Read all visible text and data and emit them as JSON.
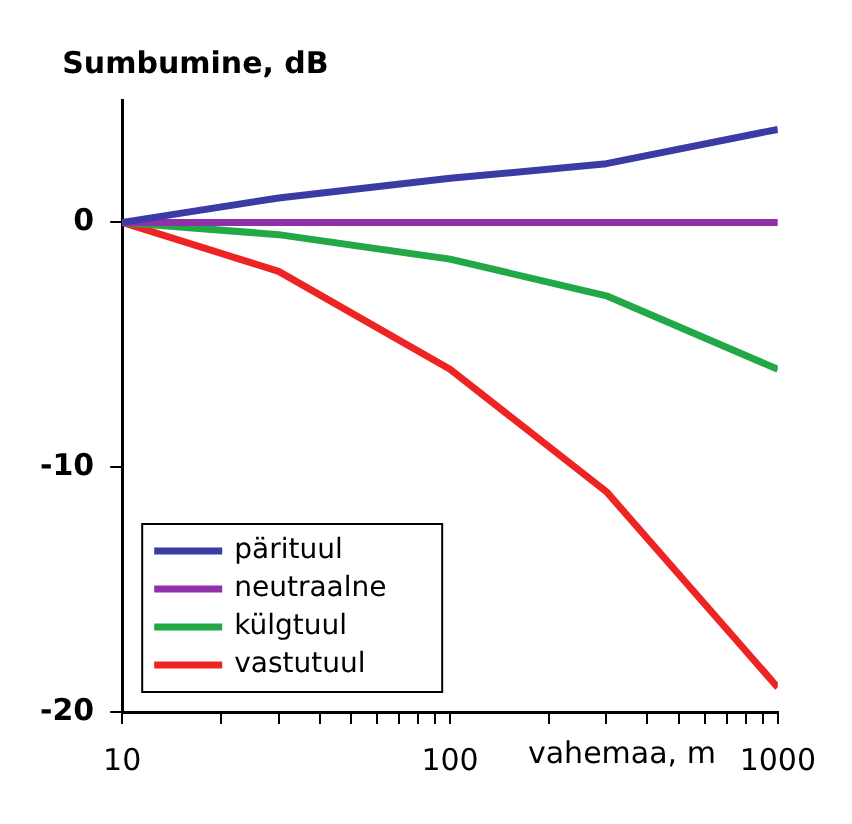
{
  "chart_data": {
    "type": "line",
    "ylabel": "Sumbumine, dB",
    "xlabel": "vahemaa, m",
    "log": "x",
    "x": [
      10,
      30,
      100,
      300,
      1000
    ],
    "series": [
      {
        "name": "pärituul",
        "color": "#3b3ba6",
        "values": [
          0,
          1,
          1.8,
          2.4,
          3.8
        ]
      },
      {
        "name": "neutraalne",
        "color": "#9030a8",
        "values": [
          0,
          0,
          0,
          0,
          0
        ]
      },
      {
        "name": "külgtuul",
        "color": "#22a846",
        "values": [
          0,
          -0.5,
          -1.5,
          -3,
          -6
        ]
      },
      {
        "name": "vastutuul",
        "color": "#ee2424",
        "values": [
          0,
          -2,
          -6,
          -11,
          -19
        ]
      }
    ],
    "xlim": [
      10,
      1000
    ],
    "ylim": [
      -20,
      5
    ],
    "xticks": [
      10,
      {
        "value": 20,
        "label": null
      },
      {
        "value": 30,
        "label": null
      },
      {
        "value": 40,
        "label": null
      },
      {
        "value": 50,
        "label": null
      },
      {
        "value": 60,
        "label": null
      },
      {
        "value": 70,
        "label": null
      },
      {
        "value": 80,
        "label": null
      },
      {
        "value": 90,
        "label": null
      },
      100,
      {
        "value": 200,
        "label": null
      },
      {
        "value": 300,
        "label": null
      },
      {
        "value": 400,
        "label": null
      },
      {
        "value": 500,
        "label": null
      },
      {
        "value": 600,
        "label": null
      },
      {
        "value": 700,
        "label": null
      },
      {
        "value": 800,
        "label": null
      },
      {
        "value": 900,
        "label": null
      },
      1000
    ],
    "yticks": [
      -20,
      -10,
      0
    ],
    "grid": false,
    "legend": "bottom left",
    "marker": "none",
    "line_style": "solid"
  }
}
